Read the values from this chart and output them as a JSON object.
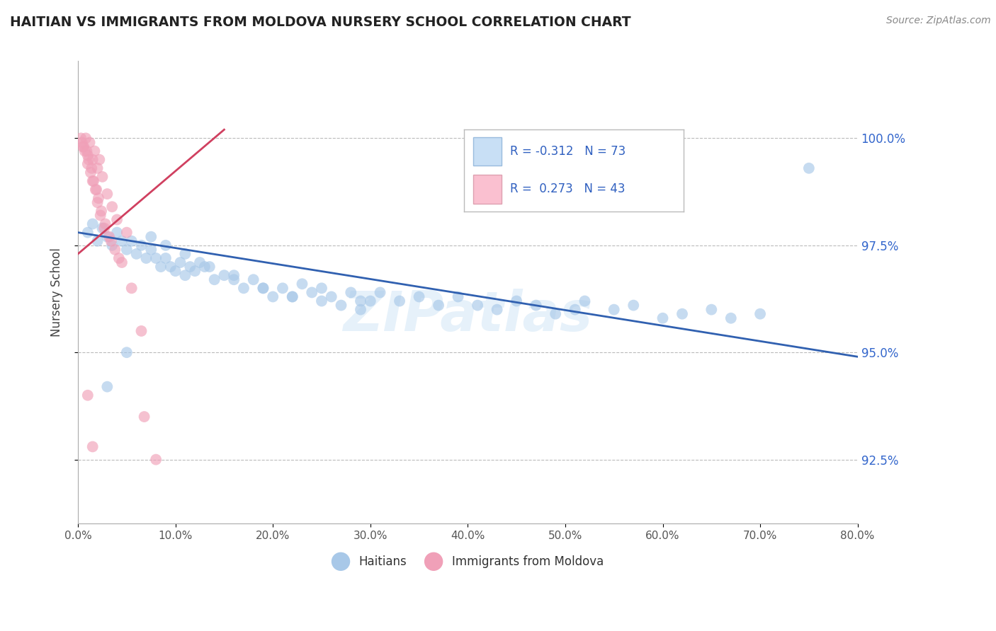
{
  "title": "HAITIAN VS IMMIGRANTS FROM MOLDOVA NURSERY SCHOOL CORRELATION CHART",
  "source": "Source: ZipAtlas.com",
  "xlabel_haitians": "Haitians",
  "xlabel_moldova": "Immigrants from Moldova",
  "ylabel": "Nursery School",
  "xlim": [
    0.0,
    80.0
  ],
  "ylim": [
    91.0,
    101.8
  ],
  "yticks": [
    92.5,
    95.0,
    97.5,
    100.0
  ],
  "xticks": [
    0.0,
    10.0,
    20.0,
    30.0,
    40.0,
    50.0,
    60.0,
    70.0,
    80.0
  ],
  "blue_R": -0.312,
  "blue_N": 73,
  "pink_R": 0.273,
  "pink_N": 43,
  "blue_color": "#A8C8E8",
  "pink_color": "#F0A0B8",
  "blue_line_color": "#3060B0",
  "pink_line_color": "#D04060",
  "blue_line_x0": 0.0,
  "blue_line_y0": 97.8,
  "blue_line_x1": 80.0,
  "blue_line_y1": 94.9,
  "pink_line_x0": 0.0,
  "pink_line_y0": 97.3,
  "pink_line_x1": 15.0,
  "pink_line_y1": 100.2,
  "blue_scatter_x": [
    1.0,
    1.5,
    2.0,
    2.5,
    3.0,
    3.5,
    4.0,
    4.5,
    5.0,
    5.5,
    6.0,
    6.5,
    7.0,
    7.5,
    8.0,
    8.5,
    9.0,
    9.5,
    10.0,
    10.5,
    11.0,
    11.5,
    12.0,
    12.5,
    13.0,
    14.0,
    15.0,
    16.0,
    17.0,
    18.0,
    19.0,
    20.0,
    21.0,
    22.0,
    23.0,
    24.0,
    25.0,
    26.0,
    27.0,
    28.0,
    29.0,
    30.0,
    31.0,
    33.0,
    35.0,
    37.0,
    39.0,
    41.0,
    43.0,
    45.0,
    47.0,
    49.0,
    51.0,
    52.0,
    55.0,
    57.0,
    60.0,
    62.0,
    65.0,
    67.0,
    70.0,
    3.0,
    5.0,
    7.5,
    9.0,
    11.0,
    13.5,
    16.0,
    19.0,
    22.0,
    25.0,
    29.0,
    75.0
  ],
  "blue_scatter_y": [
    97.8,
    98.0,
    97.6,
    97.9,
    97.7,
    97.5,
    97.8,
    97.6,
    97.4,
    97.6,
    97.3,
    97.5,
    97.2,
    97.4,
    97.2,
    97.0,
    97.2,
    97.0,
    96.9,
    97.1,
    96.8,
    97.0,
    96.9,
    97.1,
    97.0,
    96.7,
    96.8,
    96.7,
    96.5,
    96.7,
    96.5,
    96.3,
    96.5,
    96.3,
    96.6,
    96.4,
    96.5,
    96.3,
    96.1,
    96.4,
    96.2,
    96.2,
    96.4,
    96.2,
    96.3,
    96.1,
    96.3,
    96.1,
    96.0,
    96.2,
    96.1,
    95.9,
    96.0,
    96.2,
    96.0,
    96.1,
    95.8,
    95.9,
    96.0,
    95.8,
    95.9,
    94.2,
    95.0,
    97.7,
    97.5,
    97.3,
    97.0,
    96.8,
    96.5,
    96.3,
    96.2,
    96.0,
    99.3
  ],
  "pink_scatter_x": [
    0.5,
    0.8,
    1.0,
    1.2,
    1.5,
    1.7,
    2.0,
    2.2,
    2.5,
    3.0,
    3.5,
    4.0,
    5.0,
    6.5,
    0.3,
    0.6,
    0.9,
    1.1,
    1.4,
    1.6,
    1.9,
    2.1,
    2.4,
    2.8,
    3.2,
    3.8,
    4.5,
    0.4,
    0.7,
    1.0,
    1.3,
    1.5,
    1.8,
    2.0,
    2.3,
    2.7,
    3.4,
    4.2,
    5.5,
    6.8,
    8.0,
    1.0,
    1.5
  ],
  "pink_scatter_y": [
    99.8,
    100.0,
    99.6,
    99.9,
    99.5,
    99.7,
    99.3,
    99.5,
    99.1,
    98.7,
    98.4,
    98.1,
    97.8,
    95.5,
    100.0,
    99.8,
    99.7,
    99.5,
    99.3,
    99.0,
    98.8,
    98.6,
    98.3,
    98.0,
    97.7,
    97.4,
    97.1,
    99.9,
    99.7,
    99.4,
    99.2,
    99.0,
    98.8,
    98.5,
    98.2,
    97.9,
    97.6,
    97.2,
    96.5,
    93.5,
    92.5,
    94.0,
    92.8
  ],
  "watermark": "ZIPatlas",
  "legend_box_color_blue": "#C8DFF5",
  "legend_box_color_pink": "#FAC0D0"
}
